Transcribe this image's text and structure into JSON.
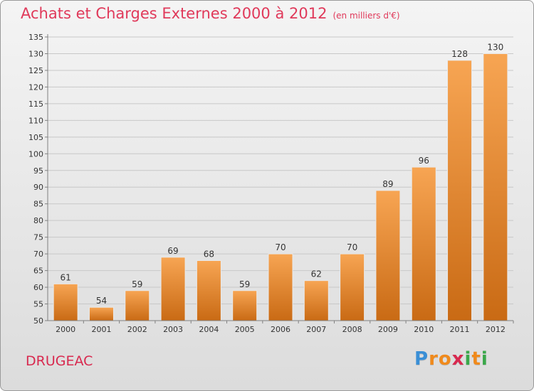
{
  "title": "Achats et Charges Externes 2000 à 2012",
  "subtitle": "(en milliers d'€)",
  "commune": "DRUGEAC",
  "logo": {
    "letters": [
      "P",
      "r",
      "o",
      "x",
      "i",
      "t",
      "i"
    ],
    "colors": [
      "#3a8fd6",
      "#f08a1c",
      "#f08a1c",
      "#d8294f",
      "#3aa84a",
      "#f08a1c",
      "#3aa84a"
    ]
  },
  "colors": {
    "bar_top": "#f7a553",
    "bar_bottom": "#c96a14",
    "grid": "#c8c8c8",
    "axis": "#808080",
    "title": "#e0395a"
  },
  "chart_data": {
    "type": "bar",
    "categories": [
      "2000",
      "2001",
      "2002",
      "2003",
      "2004",
      "2005",
      "2006",
      "2007",
      "2008",
      "2009",
      "2010",
      "2011",
      "2012"
    ],
    "values": [
      61,
      54,
      59,
      69,
      68,
      59,
      70,
      62,
      70,
      89,
      96,
      128,
      130
    ],
    "title": "Achats et Charges Externes 2000 à 2012",
    "ylim": [
      50,
      135
    ],
    "yticks": [
      50,
      55,
      60,
      65,
      70,
      75,
      80,
      85,
      90,
      95,
      100,
      105,
      110,
      115,
      120,
      125,
      130,
      135
    ],
    "grid": true,
    "data_labels": true
  }
}
